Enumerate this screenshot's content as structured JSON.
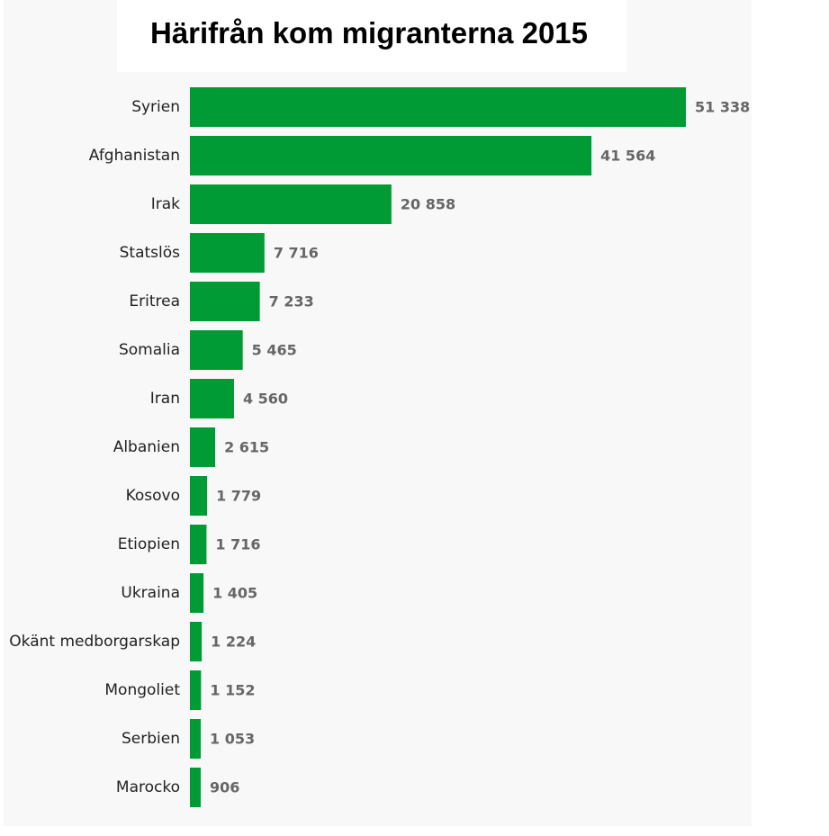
{
  "chart_data": {
    "type": "bar",
    "orientation": "horizontal",
    "title": "Härifrån kom migranterna 2015",
    "categories": [
      "Syrien",
      "Afghanistan",
      "Irak",
      "Statslös",
      "Eritrea",
      "Somalia",
      "Iran",
      "Albanien",
      "Kosovo",
      "Etiopien",
      "Ukraina",
      "Okänt medborgarskap",
      "Mongoliet",
      "Serbien",
      "Marocko"
    ],
    "values": [
      51338,
      41564,
      20858,
      7716,
      7233,
      5465,
      4560,
      2615,
      1779,
      1716,
      1405,
      1224,
      1152,
      1053,
      906
    ],
    "value_labels": [
      "51 338",
      "41 564",
      "20 858",
      "7 716",
      "7 233",
      "5 465",
      "4 560",
      "2 615",
      "1 779",
      "1 716",
      "1 405",
      "1 224",
      "1 152",
      "1 053",
      "906"
    ],
    "bar_color": "#009b35",
    "xlim": [
      0,
      51338
    ],
    "grid": false,
    "legend": "none"
  }
}
